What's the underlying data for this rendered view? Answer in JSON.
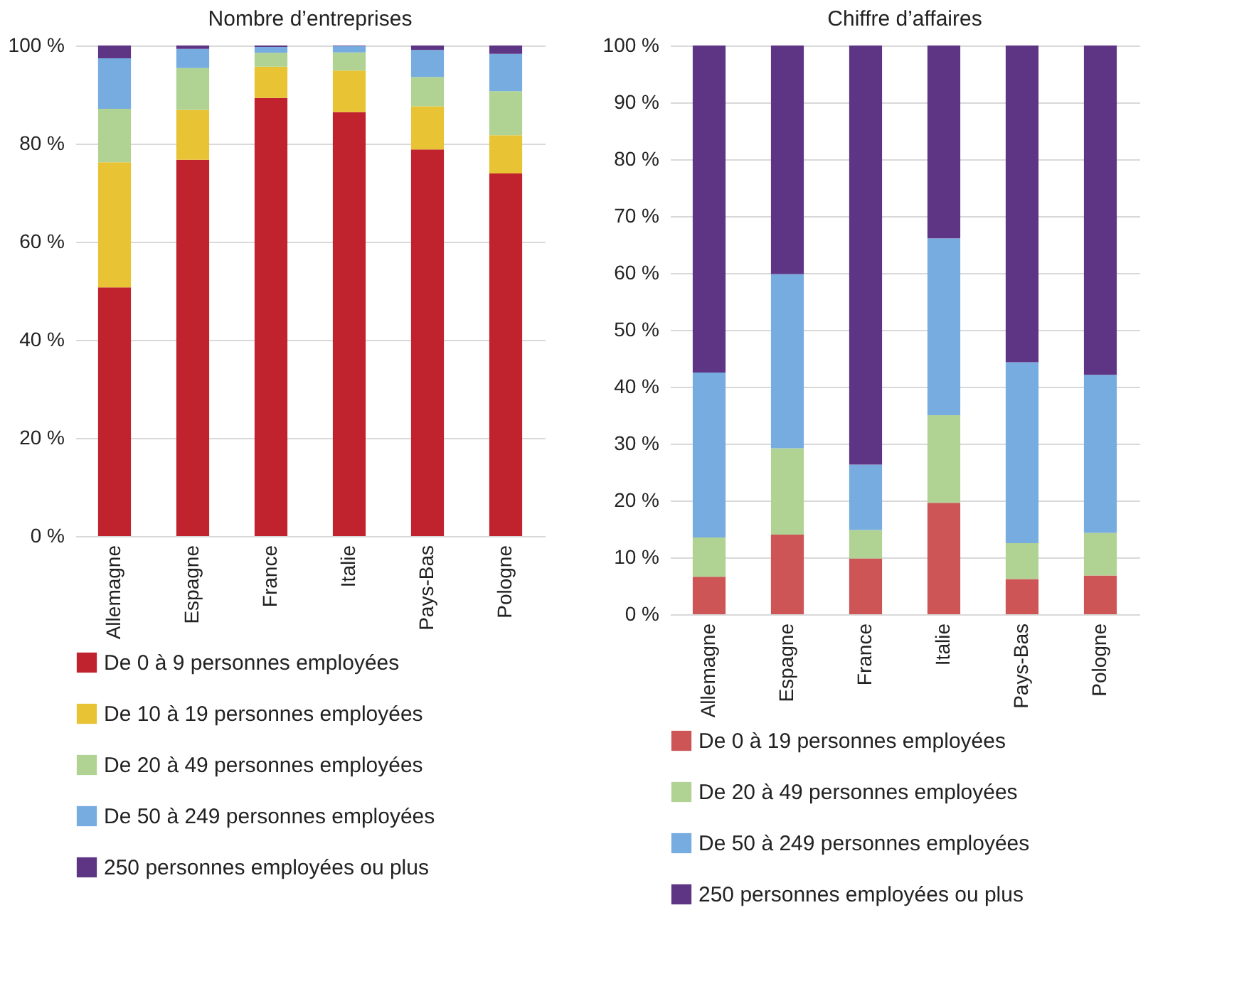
{
  "chart_data": [
    {
      "type": "bar",
      "title": "Nombre d’entreprises",
      "stacked": true,
      "grid": "y",
      "legend": "bottom",
      "categories": [
        "Allemagne",
        "Espagne",
        "France",
        "Italie",
        "Pays-Bas",
        "Pologne"
      ],
      "ylim": [
        0,
        100
      ],
      "yticks": [
        {
          "value": 0,
          "label": "0 %"
        },
        {
          "value": 20,
          "label": "20 %"
        },
        {
          "value": 40,
          "label": "40 %"
        },
        {
          "value": 60,
          "label": "60 %"
        },
        {
          "value": 80,
          "label": "80 %"
        },
        {
          "value": 100,
          "label": "100 %"
        }
      ],
      "series": [
        {
          "name": "De 0 à 9 personnes employées",
          "color": "#c0232e",
          "values": [
            50.7,
            76.7,
            89.3,
            86.4,
            78.8,
            73.9
          ]
        },
        {
          "name": "De 10 à 19 personnes employées",
          "color": "#e8c334",
          "values": [
            25.5,
            10.2,
            6.4,
            8.5,
            8.8,
            7.8
          ]
        },
        {
          "name": "De 20 à 49 personnes employées",
          "color": "#b0d293",
          "values": [
            10.9,
            8.5,
            2.8,
            3.7,
            6.0,
            9.0
          ]
        },
        {
          "name": "De 50 à 249 personnes employées",
          "color": "#76acdf",
          "values": [
            10.3,
            3.9,
            1.2,
            1.3,
            5.5,
            7.6
          ]
        },
        {
          "name": "250 personnes employées ou plus",
          "color": "#5e3584",
          "values": [
            2.6,
            0.7,
            0.3,
            0.1,
            0.9,
            1.7
          ]
        }
      ]
    },
    {
      "type": "bar",
      "title": "Chiffre d’affaires",
      "stacked": true,
      "grid": "y",
      "legend": "bottom",
      "categories": [
        "Allemagne",
        "Espagne",
        "France",
        "Italie",
        "Pays-Bas",
        "Pologne"
      ],
      "ylim": [
        0,
        100
      ],
      "yticks": [
        {
          "value": 0,
          "label": "0 %"
        },
        {
          "value": 10,
          "label": "10 %"
        },
        {
          "value": 20,
          "label": "20 %"
        },
        {
          "value": 30,
          "label": "30 %"
        },
        {
          "value": 40,
          "label": "40 %"
        },
        {
          "value": 50,
          "label": "50 %"
        },
        {
          "value": 60,
          "label": "60 %"
        },
        {
          "value": 70,
          "label": "70 %"
        },
        {
          "value": 80,
          "label": "80 %"
        },
        {
          "value": 90,
          "label": "90 %"
        },
        {
          "value": 100,
          "label": "100 %"
        }
      ],
      "series": [
        {
          "name": "De 0 à 19 personnes employées",
          "color": "#cd5555",
          "values": [
            6.6,
            14.0,
            9.8,
            19.6,
            6.2,
            6.8
          ]
        },
        {
          "name": "De 20 à 49 personnes employées",
          "color": "#b0d293",
          "values": [
            6.9,
            15.2,
            5.0,
            15.4,
            6.3,
            7.5
          ]
        },
        {
          "name": "De 50 à 249 personnes employées",
          "color": "#76acdf",
          "values": [
            29.0,
            30.6,
            11.5,
            31.1,
            31.8,
            27.8
          ]
        },
        {
          "name": "250 personnes employées ou plus",
          "color": "#5e3584",
          "values": [
            57.5,
            40.2,
            73.7,
            33.9,
            55.7,
            57.9
          ]
        }
      ]
    }
  ]
}
